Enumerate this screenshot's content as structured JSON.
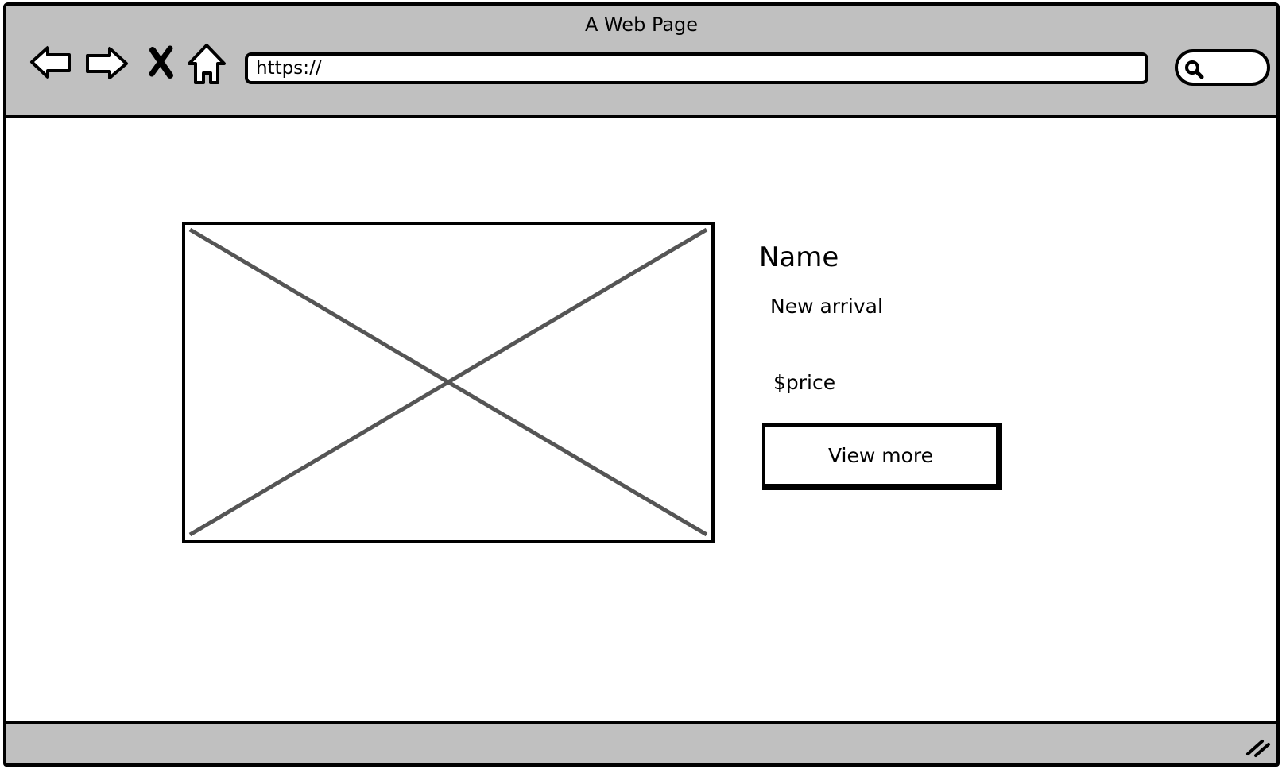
{
  "window": {
    "title": "A Web Page"
  },
  "toolbar": {
    "icons": [
      "back-arrow-icon",
      "forward-arrow-icon",
      "stop-icon",
      "home-icon",
      "search-icon"
    ],
    "url": "https://"
  },
  "product": {
    "image": "image-placeholder",
    "name": "Name",
    "status": "New arrival",
    "price": "$price",
    "button_label": "View more"
  },
  "colors": {
    "chrome": "#c0c0c0",
    "border": "#000000",
    "placeholder_line": "#555555"
  }
}
